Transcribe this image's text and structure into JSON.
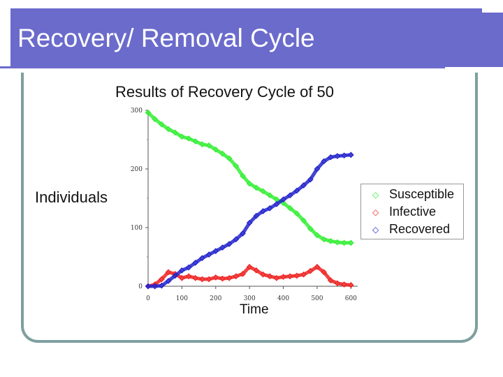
{
  "slide": {
    "title": "Recovery/ Removal Cycle"
  },
  "chart_data": {
    "type": "scatter",
    "title": "Results of Recovery Cycle of 50",
    "xlabel": "Time",
    "ylabel": "Individuals",
    "xlim": [
      0,
      620
    ],
    "ylim": [
      0,
      300
    ],
    "xticks": [
      0,
      100,
      200,
      300,
      400,
      500,
      600
    ],
    "yticks": [
      0,
      100,
      200,
      300
    ],
    "grid": false,
    "legend_position": "right",
    "series": [
      {
        "name": "Susceptible",
        "color": "#33ee33",
        "x": [
          0,
          20,
          40,
          60,
          80,
          100,
          120,
          140,
          160,
          180,
          200,
          220,
          240,
          260,
          280,
          300,
          320,
          340,
          360,
          380,
          400,
          420,
          440,
          460,
          480,
          500,
          520,
          540,
          560,
          580,
          600
        ],
        "y": [
          296,
          285,
          276,
          268,
          262,
          255,
          252,
          247,
          242,
          240,
          233,
          226,
          218,
          205,
          188,
          175,
          168,
          162,
          155,
          148,
          142,
          133,
          124,
          112,
          98,
          87,
          80,
          77,
          75,
          74,
          74
        ]
      },
      {
        "name": "Infective",
        "color": "#ee2222",
        "x": [
          0,
          20,
          40,
          60,
          80,
          100,
          120,
          140,
          160,
          180,
          200,
          220,
          240,
          260,
          280,
          300,
          320,
          340,
          360,
          380,
          400,
          420,
          440,
          460,
          480,
          500,
          520,
          540,
          560,
          580,
          600
        ],
        "y": [
          0,
          3,
          12,
          24,
          21,
          14,
          17,
          14,
          12,
          12,
          15,
          13,
          14,
          17,
          21,
          33,
          27,
          20,
          17,
          14,
          16,
          17,
          18,
          20,
          26,
          33,
          24,
          10,
          5,
          3,
          2
        ]
      },
      {
        "name": "Recovered",
        "color": "#2222cc",
        "x": [
          0,
          20,
          40,
          60,
          80,
          100,
          120,
          140,
          160,
          180,
          200,
          220,
          240,
          260,
          280,
          300,
          320,
          340,
          360,
          380,
          400,
          420,
          440,
          460,
          480,
          500,
          520,
          540,
          560,
          580,
          600
        ],
        "y": [
          0,
          0,
          1,
          9,
          18,
          27,
          32,
          40,
          48,
          54,
          60,
          66,
          72,
          80,
          90,
          108,
          120,
          128,
          133,
          140,
          148,
          155,
          163,
          172,
          182,
          200,
          213,
          220,
          222,
          223,
          224
        ]
      }
    ]
  }
}
